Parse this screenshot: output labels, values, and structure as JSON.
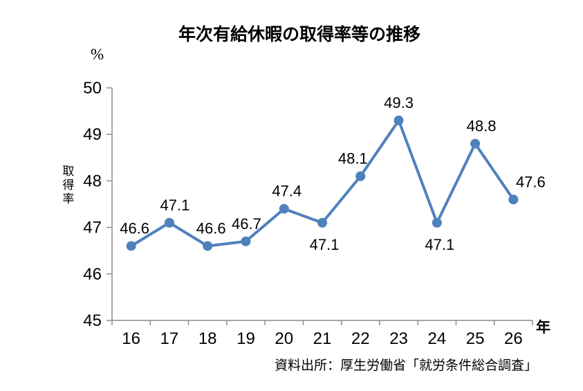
{
  "page": {
    "source": "資料出所：厚生労働省「就労条件総合調査」"
  },
  "chart_data": {
    "type": "line",
    "title": "年次有給休暇の取得率等の推移",
    "categories": [
      "16",
      "17",
      "18",
      "19",
      "20",
      "21",
      "22",
      "23",
      "24",
      "25",
      "26"
    ],
    "series": [
      {
        "name": "取得率",
        "values": [
          46.6,
          47.1,
          46.6,
          46.7,
          47.4,
          47.1,
          48.1,
          49.3,
          47.1,
          48.8,
          47.6
        ]
      }
    ],
    "ylabel": "取得率",
    "y_unit": "%",
    "x_unit": "年",
    "xlabel": "年",
    "ylim": [
      45,
      50
    ],
    "y_ticks": [
      45,
      46,
      47,
      48,
      49,
      50
    ],
    "grid": false,
    "legend": false,
    "data_labels": true,
    "data_label_placement": [
      "above",
      "above",
      "above",
      "above",
      "above",
      "below",
      "above",
      "above",
      "below",
      "above",
      "above"
    ],
    "data_label_dx": [
      5,
      8,
      5,
      1,
      4,
      3,
      -11,
      0,
      4,
      9,
      25
    ],
    "line_color": "#4F81BD",
    "marker_color": "#4F81BD",
    "axis_color": "#8C8C8C",
    "label_color": "#000000"
  }
}
